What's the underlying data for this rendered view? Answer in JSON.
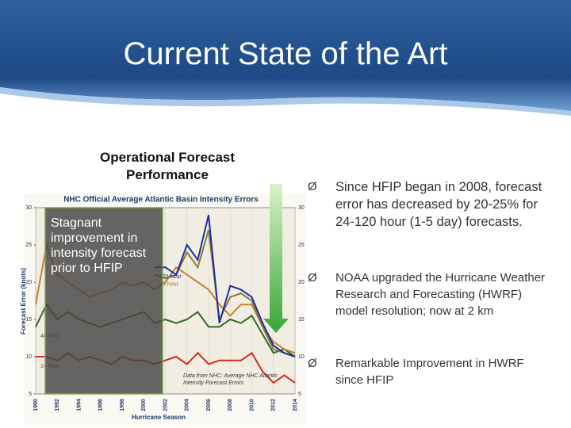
{
  "slide": {
    "title": "Current State of the Art",
    "chart_heading": "Operational Forecast Performance",
    "overlay_text": "Stagnant improvement in intensity forecast prior to HFIP",
    "bullets": [
      "Since HFIP began in 2008, forecast error has decreased by 20-25% for 24-120 hour (1-5 day) forecasts.",
      "NOAA upgraded the Hurricane Weather Research and Forecasting (HWRF) model resolution; now at 2 km",
      "Remarkable Improvement in HWRF since HFIP"
    ]
  },
  "chart_data": {
    "type": "line",
    "title": "NHC Official Average Atlantic Basin Intensity Errors",
    "y_label": "Forecast Error (knots)",
    "x_label": "Hurricane Season",
    "annotation": "Data from NHC: Average NHC Atlantic Intensity Forecast Errors",
    "x": [
      1990,
      1991,
      1992,
      1993,
      1994,
      1995,
      1996,
      1997,
      1998,
      1999,
      2000,
      2001,
      2002,
      2003,
      2004,
      2005,
      2006,
      2007,
      2008,
      2009,
      2010,
      2011,
      2012,
      2013,
      2014
    ],
    "xlim": [
      1990,
      2014
    ],
    "xticks": [
      1990,
      1992,
      1994,
      1996,
      1998,
      2000,
      2002,
      2004,
      2006,
      2008,
      2010,
      2012,
      2014
    ],
    "ylim": [
      5,
      30
    ],
    "yticks": [
      5,
      10,
      15,
      20,
      25,
      30
    ],
    "grid": true,
    "series": [
      {
        "name": "24-hour",
        "color": "#d42a1e",
        "values": [
          10,
          10,
          9.5,
          10.5,
          9.5,
          10,
          9.5,
          9,
          10,
          9.5,
          9.5,
          9,
          9.5,
          10,
          9,
          10.5,
          9,
          9.5,
          9.5,
          9.5,
          10.5,
          8,
          6.5,
          7.5,
          6.5
        ]
      },
      {
        "name": "48-hour",
        "color": "#2e6b1e",
        "values": [
          14,
          17,
          15,
          16,
          15,
          14.5,
          14,
          14.5,
          15,
          15.5,
          16,
          14.5,
          15,
          14.5,
          15,
          16,
          14,
          14,
          15,
          14.5,
          15.5,
          13,
          10.5,
          11,
          10
        ]
      },
      {
        "name": "72-hour",
        "color": "#c9822a",
        "values": [
          17,
          25,
          21,
          20,
          19,
          18,
          18.5,
          19,
          20,
          19.5,
          20,
          19,
          20,
          22,
          21,
          20,
          19,
          17,
          15.5,
          17,
          17,
          14,
          12,
          11,
          10.5
        ]
      },
      {
        "name": "96-hour",
        "color": "#8b7a2f",
        "values": [
          null,
          null,
          null,
          null,
          null,
          null,
          null,
          null,
          null,
          null,
          null,
          21,
          20.5,
          21,
          24,
          22,
          27,
          15,
          18,
          18.5,
          17.5,
          14,
          11,
          10.5,
          10
        ]
      },
      {
        "name": "120-hour",
        "color": "#1c2fa8",
        "values": [
          null,
          null,
          null,
          null,
          null,
          null,
          null,
          null,
          null,
          null,
          null,
          22,
          22,
          21,
          25,
          23,
          29,
          14.5,
          19.5,
          19,
          18,
          14.5,
          11.5,
          10.5,
          10
        ]
      }
    ]
  }
}
